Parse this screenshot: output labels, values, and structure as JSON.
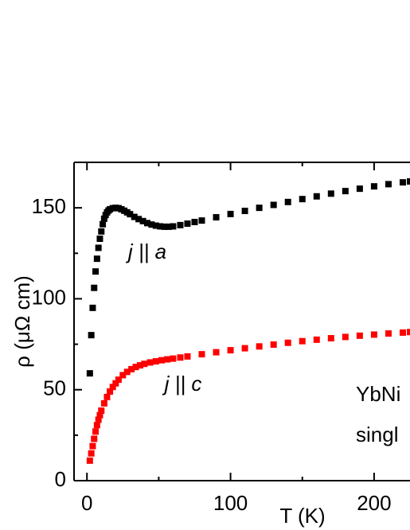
{
  "chart_data": {
    "type": "scatter",
    "x_label": "T (K)",
    "y_label": "ρ (μΩ cm)",
    "xlim": [
      -9,
      225
    ],
    "ylim": [
      0,
      175
    ],
    "xticks": [
      0,
      100,
      200
    ],
    "xminorticks": [
      50,
      150
    ],
    "yticks": [
      0,
      50,
      100,
      150
    ],
    "yminorticks": [
      25,
      75,
      125
    ],
    "annotations": [
      "YbNi",
      "singl"
    ],
    "series": [
      {
        "name": "j || a",
        "color": "#000000",
        "x": [
          2,
          3,
          4,
          5,
          6,
          7,
          8,
          9,
          10,
          11,
          12,
          13,
          14,
          15,
          16,
          18,
          20,
          22,
          24,
          26,
          28,
          30,
          33,
          36,
          39,
          42,
          45,
          48,
          51,
          54,
          57,
          60,
          65,
          70,
          75,
          80,
          90,
          100,
          110,
          120,
          130,
          140,
          150,
          160,
          170,
          180,
          190,
          200,
          210,
          220,
          225
        ],
        "values": [
          59,
          80,
          95,
          106,
          115,
          122,
          128,
          133,
          137,
          141,
          144,
          146,
          147.5,
          148.5,
          149.2,
          149.8,
          150,
          149.8,
          149.2,
          148.4,
          147.5,
          146.5,
          145,
          143.8,
          142.7,
          141.6,
          140.8,
          140.2,
          139.8,
          139.6,
          139.6,
          139.8,
          140.5,
          141.3,
          142.2,
          143,
          144.8,
          146.6,
          148.3,
          150,
          151.6,
          153.2,
          154.8,
          156.3,
          157.8,
          159.2,
          160.5,
          161.8,
          163,
          164,
          164.5
        ]
      },
      {
        "name": "j || c",
        "color": "#ff0000",
        "x": [
          2,
          3,
          4,
          5,
          6,
          7,
          8,
          9,
          10,
          12,
          14,
          16,
          18,
          20,
          22,
          25,
          28,
          31,
          34,
          37,
          40,
          44,
          48,
          52,
          56,
          60,
          65,
          70,
          80,
          90,
          100,
          110,
          120,
          130,
          140,
          150,
          160,
          170,
          180,
          190,
          200,
          210,
          220,
          225
        ],
        "values": [
          11,
          15,
          19,
          23,
          27,
          30.5,
          33.5,
          36,
          38.5,
          42.5,
          46,
          49,
          51.5,
          53.5,
          55.5,
          58,
          59.8,
          61.3,
          62.5,
          63.4,
          64.2,
          65,
          65.6,
          66.2,
          66.7,
          67.1,
          67.7,
          68.3,
          69.5,
          70.6,
          71.7,
          72.8,
          73.8,
          74.8,
          75.8,
          76.7,
          77.5,
          78.3,
          79,
          79.7,
          80.3,
          80.9,
          81.4,
          81.7
        ]
      }
    ]
  }
}
